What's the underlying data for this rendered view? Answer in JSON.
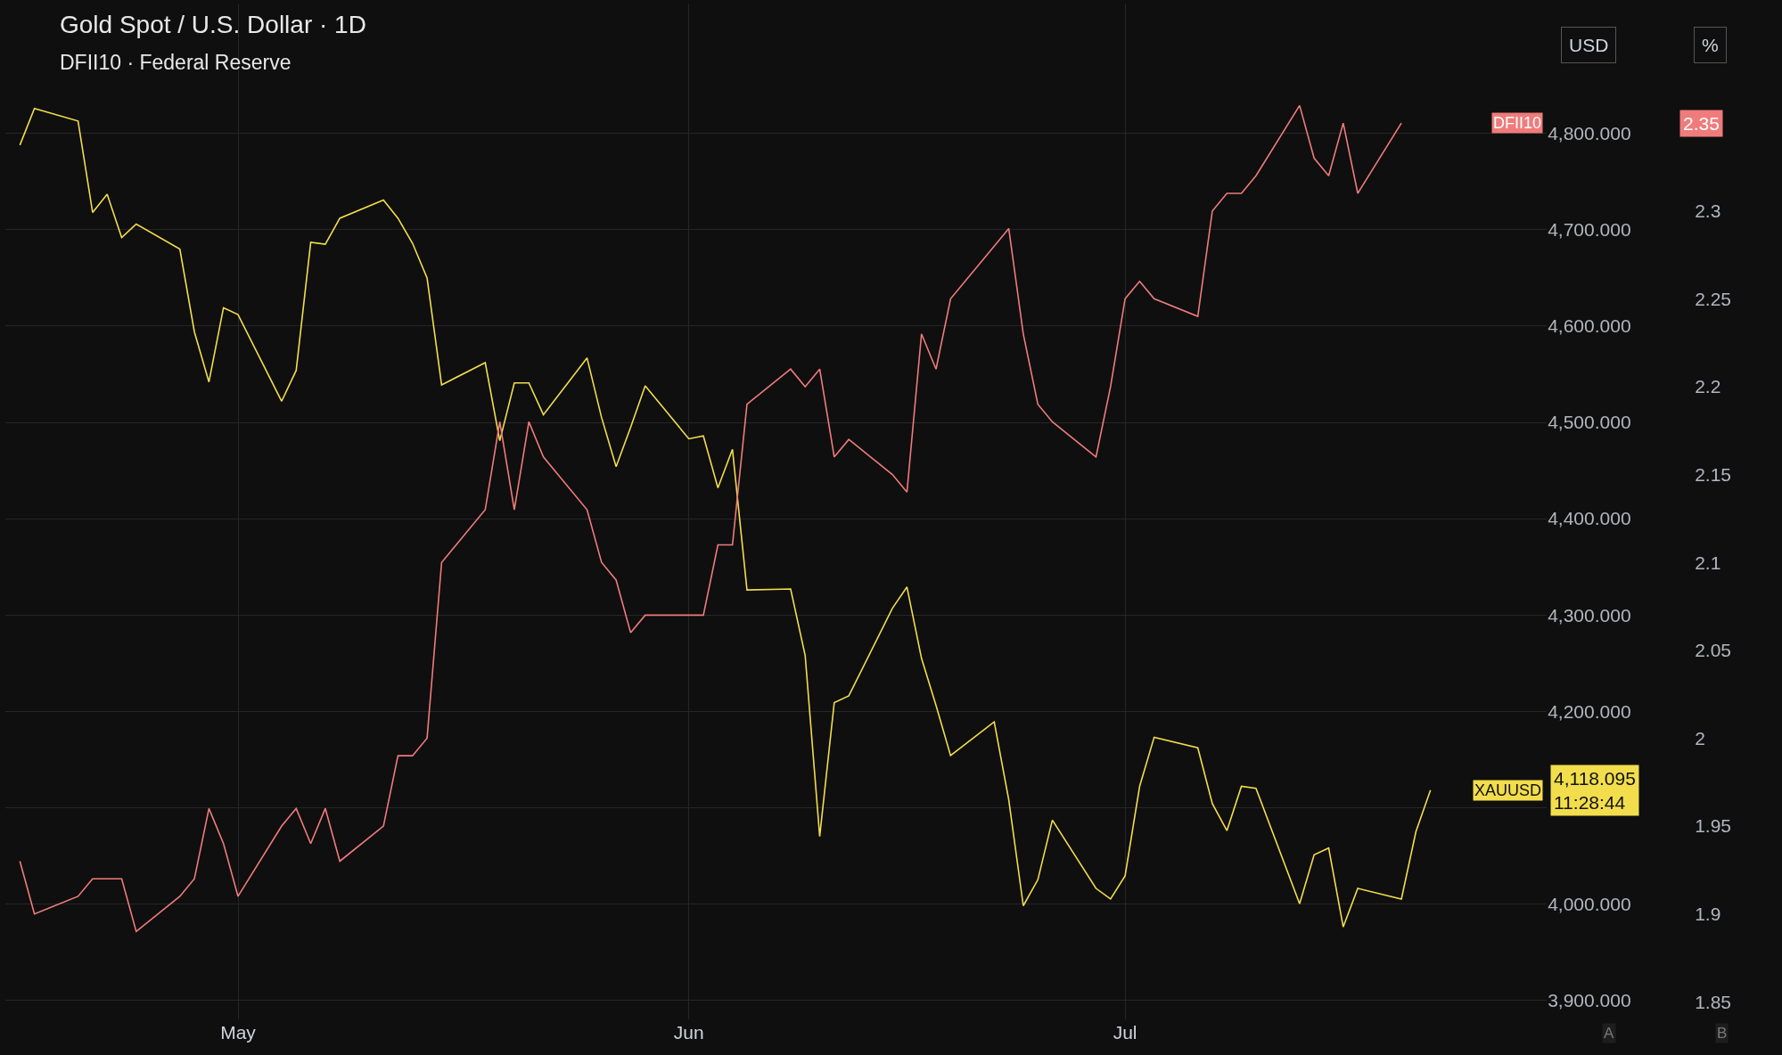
{
  "chart_data": {
    "type": "line",
    "title": "Gold Spot / U.S. Dollar · 1D",
    "subtitle": "DFII10 · Federal Reserve",
    "x": [
      "--04-16",
      "--04-17",
      "--04-20",
      "--04-21",
      "--04-22",
      "--04-23",
      "--04-24",
      "--04-27",
      "--04-28",
      "--04-29",
      "--04-30",
      "--05-01",
      "--05-04",
      "--05-05",
      "--05-06",
      "--05-07",
      "--05-08",
      "--05-11",
      "--05-12",
      "--05-13",
      "--05-14",
      "--05-15",
      "--05-18",
      "--05-19",
      "--05-20",
      "--05-21",
      "--05-22",
      "--05-25",
      "--05-26",
      "--05-27",
      "--05-28",
      "--05-29",
      "--06-01",
      "--06-02",
      "--06-03",
      "--06-04",
      "--06-05",
      "--06-08",
      "--06-09",
      "--06-10",
      "--06-11",
      "--06-12",
      "--06-15",
      "--06-16",
      "--06-17",
      "--06-18",
      "--06-19",
      "--06-22",
      "--06-23",
      "--06-24",
      "--06-25",
      "--06-26",
      "--06-29",
      "--06-30",
      "--07-01",
      "--07-02",
      "--07-03",
      "--07-06",
      "--07-07",
      "--07-08",
      "--07-09",
      "--07-10",
      "--07-13",
      "--07-14",
      "--07-15",
      "--07-16",
      "--07-17",
      "--07-20",
      "--07-21",
      "--07-22"
    ],
    "series": [
      {
        "name": "XAUUSD",
        "color": "#f2dd4c",
        "values": [
          4788,
          4826,
          4813,
          4718,
          4737,
          4692,
          4706,
          4680,
          4594,
          4542,
          4619,
          4612,
          4522,
          4554,
          4687,
          4685,
          4712,
          4731,
          4712,
          4686,
          4650,
          4539,
          4562,
          4481,
          4541,
          4541,
          4508,
          4567,
          4505,
          4454,
          4495,
          4538,
          4483,
          4486,
          4432,
          4472,
          4326,
          4327,
          4258,
          4070,
          4209,
          4216,
          4307,
          4329,
          4255,
          4206,
          4154,
          4189,
          4108,
          3998,
          4025,
          4087,
          4016,
          4005,
          4029,
          4122,
          4173,
          4162,
          4104,
          4076,
          4122,
          4120,
          4000,
          4051,
          4058,
          3976,
          4016,
          4005,
          4075,
          4118
        ]
      },
      {
        "name": "DFII10",
        "color": "#f07b7b",
        "axis": "y2",
        "values": [
          1.93,
          1.9,
          1.91,
          1.92,
          1.92,
          1.92,
          1.89,
          1.91,
          1.92,
          1.96,
          1.94,
          1.91,
          1.95,
          1.96,
          1.94,
          1.96,
          1.93,
          1.95,
          1.99,
          1.99,
          2.0,
          2.1,
          2.13,
          2.18,
          2.13,
          2.18,
          2.16,
          2.13,
          2.1,
          2.09,
          2.06,
          2.07,
          2.07,
          2.07,
          2.11,
          2.11,
          2.19,
          2.21,
          2.2,
          2.21,
          2.16,
          2.17,
          2.15,
          2.14,
          2.23,
          2.21,
          2.25,
          2.28,
          2.29,
          2.23,
          2.19,
          2.18,
          2.16,
          2.2,
          2.25,
          2.26,
          2.25,
          2.24,
          2.3,
          2.31,
          2.31,
          2.32,
          2.36,
          2.33,
          2.32,
          2.35,
          2.31,
          2.35,
          null,
          null
        ]
      }
    ],
    "xlim": [
      "--04-15",
      "--07-30"
    ],
    "xticks": [
      {
        "value": "--05-01",
        "label": "May"
      },
      {
        "value": "--06-01",
        "label": "Jun"
      },
      {
        "value": "--07-01",
        "label": "Jul"
      }
    ],
    "ylim": [
      3880,
      4935
    ],
    "yticks": [
      {
        "value": 3900,
        "label": "3,900.000"
      },
      {
        "value": 4000,
        "label": "4,000.000"
      },
      {
        "value": 4100,
        "label": null
      },
      {
        "value": 4200,
        "label": "4,200.000"
      },
      {
        "value": 4300,
        "label": "4,300.000"
      },
      {
        "value": 4400,
        "label": "4,400.000"
      },
      {
        "value": 4500,
        "label": "4,500.000"
      },
      {
        "value": 4600,
        "label": "4,600.000"
      },
      {
        "value": 4700,
        "label": "4,700.000"
      },
      {
        "value": 4800,
        "label": "4,800.000"
      }
    ],
    "y2lim": [
      1.84,
      2.418
    ],
    "y2ticks": [
      1.85,
      1.9,
      1.95,
      2,
      2.05,
      2.1,
      2.15,
      2.2,
      2.25,
      2.3
    ],
    "grid": true,
    "legend": false,
    "marker": "none",
    "line_style": "solid",
    "annotations": [
      "4,118.095\n11:28:44",
      "2.35",
      "USD",
      "%",
      "A",
      "B"
    ]
  }
}
